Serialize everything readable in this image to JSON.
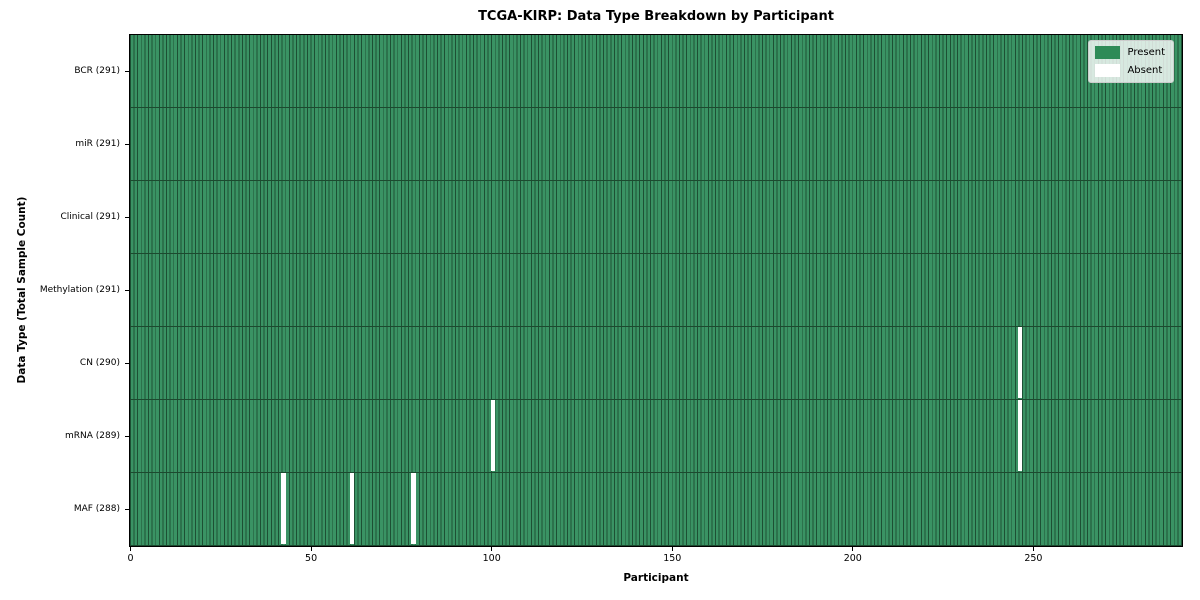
{
  "figure_title": "TCGA-KIRP: Data Type Breakdown by Participant",
  "colors": {
    "cell_fill": "#3a9364",
    "cell_edge": "#1d5034",
    "row_separator": "#1c4a2f",
    "absent": "#ffffff",
    "legend_present_swatch": "#2e8b57",
    "plot_border": "#000000",
    "text": "#000000",
    "legend_background": "rgba(255,255,255,0.8)"
  },
  "chart_data": {
    "type": "heatmap",
    "title": "TCGA-KIRP: Data Type Breakdown by Participant",
    "xlabel": "Participant",
    "ylabel": "Data Type (Total Sample Count)",
    "x_ticks": [
      0,
      50,
      100,
      150,
      200,
      250
    ],
    "xlim": [
      0,
      291
    ],
    "n_participants": 291,
    "legend": [
      "Present",
      "Absent"
    ],
    "legend_position": "upper right",
    "grid": "cell edges drawn as thin dark lines",
    "rows": [
      {
        "label": "BCR (291)",
        "data_type": "BCR",
        "total_samples": 291,
        "absent_participants": []
      },
      {
        "label": "miR (291)",
        "data_type": "miR",
        "total_samples": 291,
        "absent_participants": []
      },
      {
        "label": "Clinical (291)",
        "data_type": "Clinical",
        "total_samples": 291,
        "absent_participants": []
      },
      {
        "label": "Methylation (291)",
        "data_type": "Methylation",
        "total_samples": 291,
        "absent_participants": []
      },
      {
        "label": "CN (290)",
        "data_type": "CN",
        "total_samples": 290,
        "absent_participants": [
          246
        ]
      },
      {
        "label": "mRNA (289)",
        "data_type": "mRNA",
        "total_samples": 289,
        "absent_participants": [
          100,
          246
        ]
      },
      {
        "label": "MAF (288)",
        "data_type": "MAF",
        "total_samples": 288,
        "absent_participants": [
          42,
          61,
          78
        ]
      }
    ]
  }
}
